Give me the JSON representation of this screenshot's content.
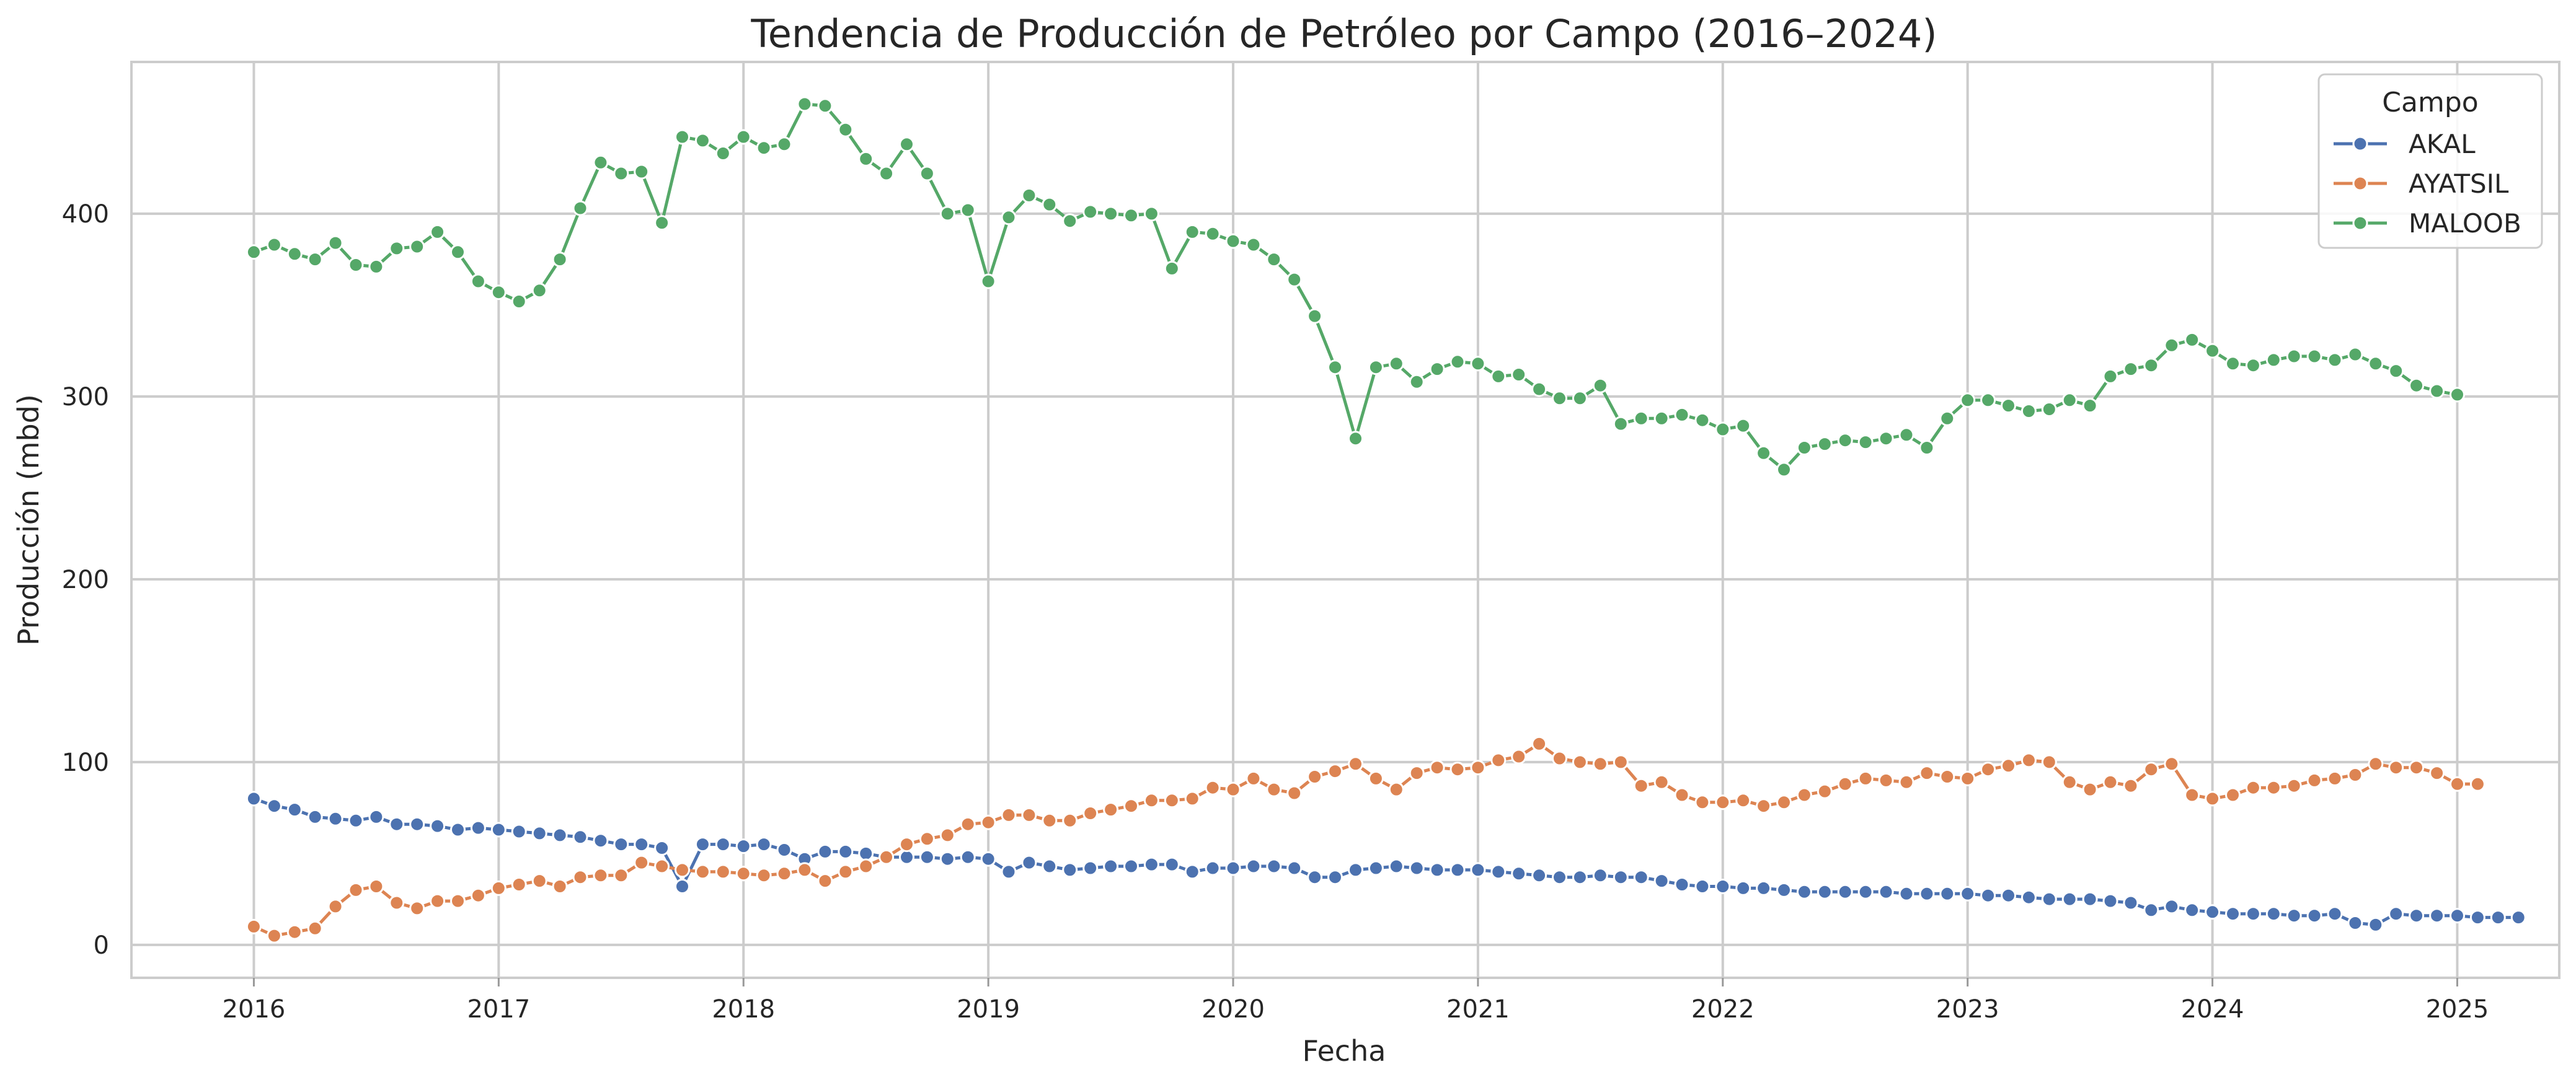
{
  "chart_data": {
    "type": "line",
    "title": "Tendencia de Producción de Petróleo por Campo (2016–2024)",
    "xlabel": "Fecha",
    "ylabel": "Producción (mbd)",
    "x_start": "2016-01",
    "x_frequency": "monthly",
    "xlim": [
      "2015-07",
      "2025-06"
    ],
    "ylim": [
      -18,
      483
    ],
    "x_ticks": [
      "2016",
      "2017",
      "2018",
      "2019",
      "2020",
      "2021",
      "2022",
      "2023",
      "2024",
      "2025"
    ],
    "y_ticks": [
      0,
      100,
      200,
      300,
      400
    ],
    "grid": true,
    "legend": {
      "title": "Campo",
      "placement": "top-right"
    },
    "series": [
      {
        "name": "AKAL",
        "color": "#4c72b0",
        "values": [
          80,
          76,
          74,
          70,
          69,
          68,
          70,
          66,
          66,
          65,
          63,
          64,
          63,
          62,
          61,
          60,
          59,
          57,
          55,
          55,
          53,
          32,
          55,
          55,
          54,
          55,
          52,
          47,
          51,
          51,
          50,
          48,
          48,
          48,
          47,
          48,
          47,
          40,
          45,
          43,
          41,
          42,
          43,
          43,
          44,
          44,
          40,
          42,
          42,
          43,
          43,
          42,
          37,
          37,
          41,
          42,
          43,
          42,
          41,
          41,
          41,
          40,
          39,
          38,
          37,
          37,
          38,
          37,
          37,
          35,
          33,
          32,
          32,
          31,
          31,
          30,
          29,
          29,
          29,
          29,
          29,
          28,
          28,
          28,
          28,
          27,
          27,
          26,
          25,
          25,
          25,
          24,
          23,
          19,
          21,
          19,
          18,
          17,
          17,
          17,
          16,
          16,
          17,
          12,
          11,
          17,
          16,
          16,
          16,
          15,
          15,
          15
        ]
      },
      {
        "name": "AYATSIL",
        "color": "#dd8452",
        "values": [
          10,
          5,
          7,
          9,
          21,
          30,
          32,
          23,
          20,
          24,
          24,
          27,
          31,
          33,
          35,
          32,
          37,
          38,
          38,
          45,
          43,
          41,
          40,
          40,
          39,
          38,
          39,
          41,
          35,
          40,
          43,
          48,
          55,
          58,
          60,
          66,
          67,
          71,
          71,
          68,
          68,
          72,
          74,
          76,
          79,
          79,
          80,
          86,
          85,
          91,
          85,
          83,
          92,
          95,
          99,
          91,
          85,
          94,
          97,
          96,
          97,
          101,
          103,
          110,
          102,
          100,
          99,
          100,
          87,
          89,
          82,
          78,
          78,
          79,
          76,
          78,
          82,
          84,
          88,
          91,
          90,
          89,
          94,
          92,
          91,
          96,
          98,
          101,
          100,
          89,
          85,
          89,
          87,
          96,
          99,
          82,
          80,
          82,
          86,
          86,
          87,
          90,
          91,
          93,
          99,
          97,
          97,
          94,
          88,
          88
        ]
      },
      {
        "name": "MALOOB",
        "color": "#55a868",
        "values": [
          379,
          383,
          378,
          375,
          384,
          372,
          371,
          381,
          382,
          390,
          379,
          363,
          357,
          352,
          358,
          375,
          403,
          428,
          422,
          423,
          395,
          442,
          440,
          433,
          442,
          436,
          438,
          460,
          459,
          446,
          430,
          422,
          438,
          422,
          400,
          402,
          363,
          398,
          410,
          405,
          396,
          401,
          400,
          399,
          400,
          370,
          390,
          389,
          385,
          383,
          375,
          364,
          344,
          316,
          277,
          316,
          318,
          308,
          315,
          319,
          318,
          311,
          312,
          304,
          299,
          299,
          306,
          285,
          288,
          288,
          290,
          287,
          282,
          284,
          269,
          260,
          272,
          274,
          276,
          275,
          277,
          279,
          272,
          288,
          298,
          298,
          295,
          292,
          293,
          298,
          295,
          311,
          315,
          317,
          328,
          331,
          325,
          318,
          317,
          320,
          322,
          322,
          320,
          323,
          318,
          314,
          306,
          303,
          301
        ]
      }
    ]
  }
}
